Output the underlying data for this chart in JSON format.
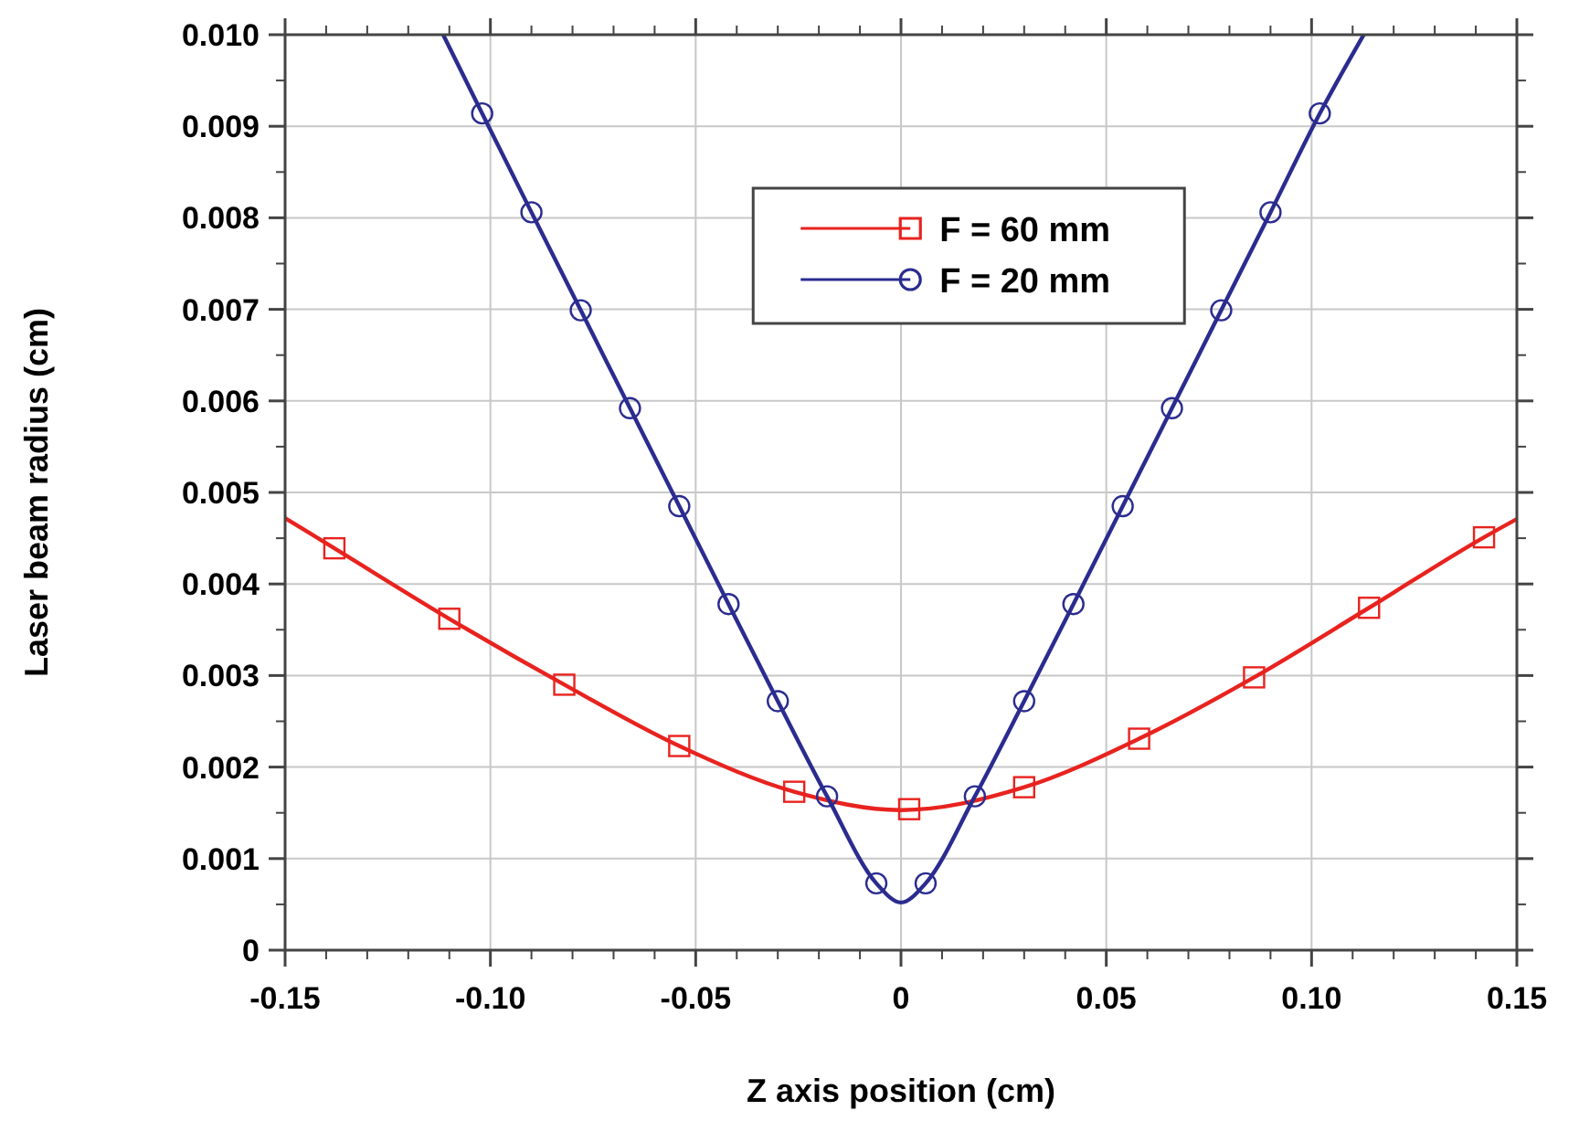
{
  "chart_data": {
    "type": "line",
    "xlabel": "Z axis position (cm)",
    "ylabel": "Laser beam radius (cm)",
    "xlim": [
      -0.15,
      0.15
    ],
    "ylim": [
      0,
      0.01
    ],
    "xticks": [
      {
        "value": -0.15,
        "label": "-0.15"
      },
      {
        "value": -0.1,
        "label": "-0.10"
      },
      {
        "value": -0.05,
        "label": "-0.05"
      },
      0,
      {
        "value": 0.05,
        "label": "0.05"
      },
      {
        "value": 0.1,
        "label": "0.10"
      },
      {
        "value": 0.15,
        "label": "0.15"
      }
    ],
    "yticks": [
      0,
      0.001,
      0.002,
      0.003,
      0.004,
      0.005,
      0.006,
      0.007,
      0.008,
      0.009,
      {
        "value": 0.01,
        "label": "0.010"
      }
    ],
    "grid": true,
    "legend": "top",
    "line_style": "solid",
    "series": [
      {
        "color": "#e8231f",
        "marker": "none",
        "x": [
          -0.15,
          -0.138,
          -0.11,
          -0.082,
          -0.054,
          -0.026,
          0,
          0.03,
          0.058,
          0.086,
          0.114,
          0.142,
          0.15
        ],
        "values": [
          0.00472,
          0.00439,
          0.00362,
          0.0029,
          0.00223,
          0.00173,
          0.00153,
          0.00178,
          0.00231,
          0.00298,
          0.00374,
          0.00451,
          0.00471
        ]
      },
      {
        "color": "#2b2c8f",
        "marker": "none",
        "x": [
          -0.1115,
          -0.102,
          -0.09,
          -0.078,
          -0.066,
          -0.054,
          -0.042,
          -0.03,
          -0.018,
          -0.006,
          0,
          0.006,
          0.018,
          0.03,
          0.042,
          0.054,
          0.066,
          0.078,
          0.09,
          0.102,
          0.1127
        ],
        "values": [
          0.01,
          0.00914,
          0.00806,
          0.00699,
          0.00592,
          0.00485,
          0.00378,
          0.00272,
          0.00168,
          0.00073,
          0.00052,
          0.00073,
          0.00168,
          0.00272,
          0.00378,
          0.00485,
          0.00592,
          0.00699,
          0.00806,
          0.00914,
          0.01
        ]
      },
      {
        "type": "scatter",
        "name": "F = 60 mm",
        "color": "#e8231f",
        "marker": "square",
        "x": [
          -0.138,
          -0.11,
          -0.082,
          -0.054,
          -0.026,
          0.002,
          0.03,
          0.058,
          0.086,
          0.114,
          0.142
        ],
        "values": [
          0.00439,
          0.00362,
          0.0029,
          0.00223,
          0.00173,
          0.00154,
          0.00178,
          0.00231,
          0.00298,
          0.00374,
          0.00451
        ]
      },
      {
        "type": "scatter",
        "name": "F = 20 mm",
        "color": "#2b2c8f",
        "marker": "circle",
        "x": [
          -0.102,
          -0.09,
          -0.078,
          -0.066,
          -0.054,
          -0.042,
          -0.03,
          -0.018,
          -0.006,
          0.006,
          0.018,
          0.03,
          0.042,
          0.054,
          0.066,
          0.078,
          0.09,
          0.102
        ],
        "values": [
          0.00914,
          0.00806,
          0.00699,
          0.00592,
          0.00485,
          0.00378,
          0.00272,
          0.00168,
          0.00073,
          0.00073,
          0.00168,
          0.00272,
          0.00378,
          0.00485,
          0.00592,
          0.00699,
          0.00806,
          0.00914
        ]
      }
    ]
  }
}
